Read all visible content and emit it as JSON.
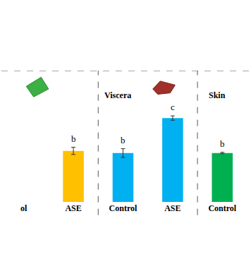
{
  "chart_data": {
    "type": "bar",
    "ylim": [
      0,
      180
    ],
    "yticks": [],
    "tick_labels": "x",
    "grid": false,
    "panels": [
      {
        "title": null,
        "categories": [
          "ol",
          "ASE"
        ],
        "values": [
          null,
          70
        ],
        "errors": [
          null,
          5
        ],
        "colors": [
          "#FFC000",
          "#FFC000"
        ],
        "letters": [
          null,
          "b"
        ]
      },
      {
        "title": "Viscera",
        "categories": [
          "Control",
          "ASE"
        ],
        "values": [
          67,
          115
        ],
        "errors": [
          6,
          3
        ],
        "colors": [
          "#00B0F0",
          "#00B0F0"
        ],
        "letters": [
          "b",
          "c"
        ]
      },
      {
        "title": "Skin",
        "categories": [
          "Control"
        ],
        "values": [
          67
        ],
        "errors": [
          1
        ],
        "colors": [
          "#00B050"
        ],
        "letters": [
          "b"
        ]
      }
    ]
  }
}
